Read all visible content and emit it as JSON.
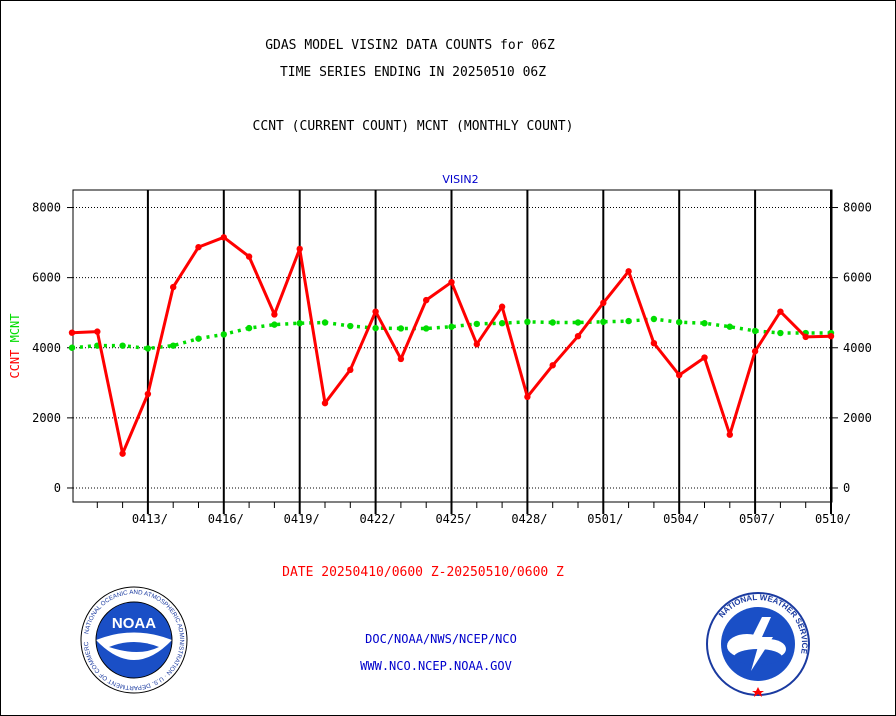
{
  "header": {
    "title_line1": "GDAS MODEL VISIN2 DATA COUNTS for 06Z",
    "title_line2": "TIME SERIES ENDING IN 20250510 06Z",
    "subtitle": "CCNT (CURRENT COUNT) MCNT (MONTHLY COUNT)"
  },
  "footer": {
    "date_range": "DATE 20250410/0600 Z-20250510/0600 Z",
    "org": "DOC/NOAA/NWS/NCEP/NCO",
    "url": "WWW.NCO.NCEP.NOAA.GOV"
  },
  "logos": {
    "left": {
      "name": "noaa-logo",
      "text": "NOAA",
      "ring_text": "NATIONAL OCEANIC AND ATMOSPHERIC ADMINISTRATION · U.S. DEPARTMENT OF COMMERCE"
    },
    "right": {
      "name": "nws-logo",
      "ring_text": "NATIONAL WEATHER SERVICE"
    }
  },
  "colors": {
    "ccnt": "#ff0000",
    "mcnt": "#00dd00",
    "plot_title": "#0000cc",
    "footer_date": "#ff0000",
    "footer_links": "#0000cc"
  },
  "chart_data": {
    "type": "line",
    "title": "VISIN2",
    "ylabel_series1": "CCNT",
    "ylabel_series2": "MCNT",
    "ylim": [
      -400,
      8500
    ],
    "yticks": [
      0,
      2000,
      4000,
      6000,
      8000
    ],
    "grid": true,
    "x_tick_labels": [
      "0413/",
      "0416/",
      "0419/",
      "0422/",
      "0425/",
      "0428/",
      "0501/",
      "0504/",
      "0507/",
      "0510/"
    ],
    "x_day_range": [
      0,
      30
    ],
    "series": [
      {
        "name": "CCNT",
        "values": [
          4430,
          4460,
          980,
          2680,
          5730,
          6870,
          7150,
          6600,
          4950,
          6820,
          2420,
          3370,
          5030,
          3680,
          5360,
          5870,
          4100,
          5170,
          2600,
          3500,
          4330,
          5280,
          6180,
          4130,
          3220,
          3720,
          1520,
          3900,
          5030,
          4310,
          4330
        ]
      },
      {
        "name": "MCNT",
        "values": [
          4000,
          4060,
          4060,
          3980,
          4060,
          4260,
          4380,
          4560,
          4660,
          4700,
          4720,
          4620,
          4560,
          4550,
          4550,
          4600,
          4680,
          4700,
          4740,
          4720,
          4720,
          4740,
          4760,
          4820,
          4730,
          4700,
          4600,
          4480,
          4420,
          4420,
          4420
        ]
      }
    ]
  }
}
